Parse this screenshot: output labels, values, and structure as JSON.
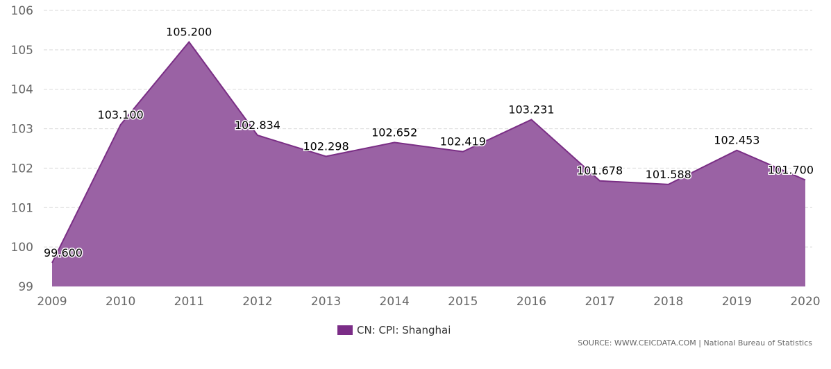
{
  "chart_data": {
    "type": "area",
    "title": "",
    "xlabel": "",
    "ylabel": "",
    "categories": [
      "2009",
      "2010",
      "2011",
      "2012",
      "2013",
      "2014",
      "2015",
      "2016",
      "2017",
      "2018",
      "2019",
      "2020"
    ],
    "series": [
      {
        "name": "CN: CPI: Shanghai",
        "values": [
          99.6,
          103.1,
          105.2,
          102.834,
          102.298,
          102.652,
          102.419,
          103.231,
          101.678,
          101.588,
          102.453,
          101.7
        ],
        "labels": [
          "99.600",
          "103.100",
          "105.200",
          "102.834",
          "102.298",
          "102.652",
          "102.419",
          "103.231",
          "101.678",
          "101.588",
          "102.453",
          "101.700"
        ]
      }
    ],
    "ylim": [
      99,
      106
    ],
    "yticks": [
      "99",
      "100",
      "101",
      "102",
      "103",
      "104",
      "105",
      "106"
    ],
    "grid": true,
    "legend": "bottom-center"
  },
  "colors": {
    "fill": "#9a62a4",
    "line": "#7a2e85",
    "legend": "#7b2d87",
    "grid": "#d9d9d9"
  },
  "footer": {
    "source_prefix": "SOURCE: WWW.CEICDATA.COM",
    "source_separator": " | ",
    "source_org": "National Bureau of Statistics"
  }
}
